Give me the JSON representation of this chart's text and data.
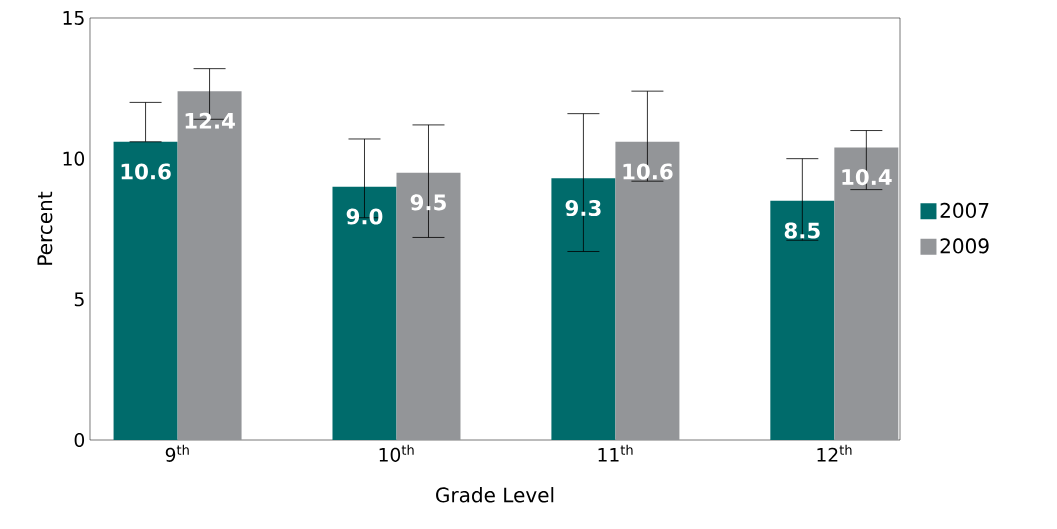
{
  "chart_data": {
    "type": "bar",
    "xlabel": "Grade Level",
    "ylabel": "Percent",
    "categories": [
      "9$^{th}$",
      "10$^{th}$",
      "11$^{th}$",
      "12$^{th}$"
    ],
    "series": [
      {
        "name": "2007",
        "color": "#006b6b",
        "values": [
          10.6,
          9.0,
          9.3,
          8.5
        ],
        "value_labels": [
          "10.6",
          "9.0",
          "9.3",
          "8.5"
        ],
        "errors": [
          [
            10.6,
            12.0
          ],
          [
            7.9,
            10.7
          ],
          [
            6.7,
            11.6
          ],
          [
            7.1,
            10.0
          ]
        ]
      },
      {
        "name": "2009",
        "color": "#939598",
        "values": [
          12.4,
          9.5,
          10.6,
          10.4
        ],
        "value_labels": [
          "12.4",
          "9.5",
          "10.6",
          "10.4"
        ],
        "errors": [
          [
            11.4,
            13.2
          ],
          [
            7.2,
            11.2
          ],
          [
            9.2,
            12.4
          ],
          [
            8.9,
            11.0
          ]
        ]
      }
    ],
    "ylim": [
      0,
      15
    ],
    "yticks": [
      0,
      5,
      10,
      15
    ],
    "legend": "right"
  }
}
